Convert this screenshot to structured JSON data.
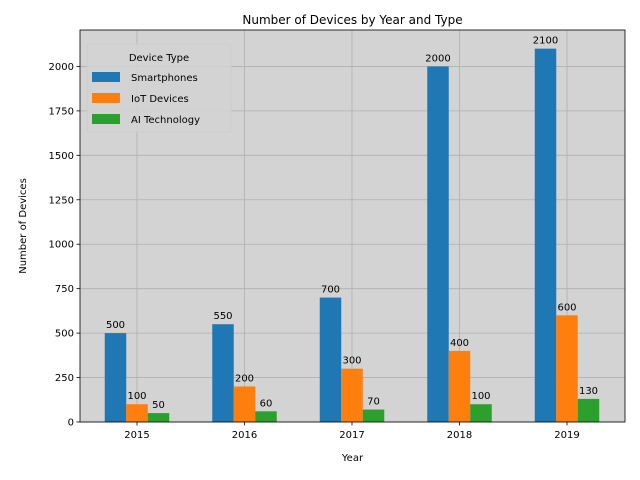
{
  "chart_data": {
    "type": "bar",
    "title": "Number of Devices by Year and Type",
    "xlabel": "Year",
    "ylabel": "Number of Devices",
    "categories": [
      "2015",
      "2016",
      "2017",
      "2018",
      "2019"
    ],
    "series": [
      {
        "name": "Smartphones",
        "color": "#1f77b4",
        "values": [
          500,
          550,
          700,
          2000,
          2100
        ]
      },
      {
        "name": "IoT Devices",
        "color": "#ff7f0e",
        "values": [
          100,
          200,
          300,
          400,
          600
        ]
      },
      {
        "name": "AI Technology",
        "color": "#2ca02c",
        "values": [
          50,
          60,
          70,
          100,
          130
        ]
      }
    ],
    "ylim": [
      0,
      2205
    ],
    "yticks": [
      0,
      250,
      500,
      750,
      1000,
      1250,
      1500,
      1750,
      2000
    ],
    "grid": true,
    "legend": {
      "title": "Device Type",
      "placement": "top-left"
    },
    "plot_background": "#d3d3d3"
  }
}
